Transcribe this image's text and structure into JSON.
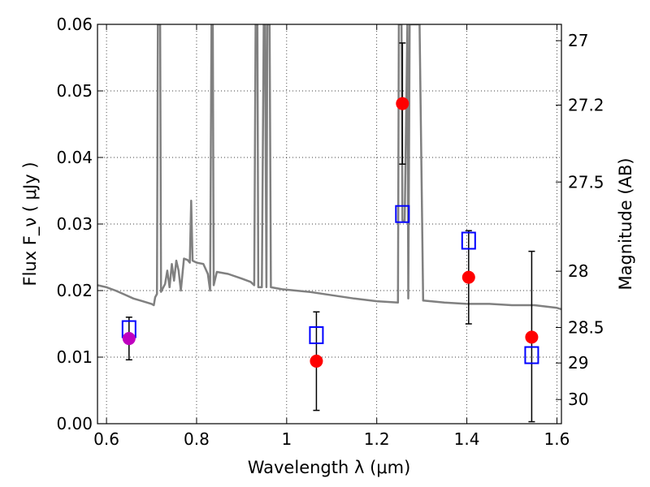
{
  "chart_data": {
    "type": "scatter",
    "xlabel": "Wavelength  λ (μm)",
    "ylabel": "Flux  F_ν  ( μJy )",
    "y2label": "Magnitude (AB)",
    "xlim": [
      0.58,
      1.61
    ],
    "ylim": [
      0.0,
      0.06
    ],
    "grid": true,
    "x_ticks": [
      {
        "value": 0.6,
        "label": "0.6"
      },
      {
        "value": 0.8,
        "label": "0.8"
      },
      {
        "value": 1.0,
        "label": "1"
      },
      {
        "value": 1.2,
        "label": "1.2"
      },
      {
        "value": 1.4,
        "label": "1.4"
      },
      {
        "value": 1.6,
        "label": "1.6"
      }
    ],
    "y_ticks": [
      {
        "value": 0.0,
        "label": "0.00"
      },
      {
        "value": 0.01,
        "label": "0.01"
      },
      {
        "value": 0.02,
        "label": "0.02"
      },
      {
        "value": 0.03,
        "label": "0.03"
      },
      {
        "value": 0.04,
        "label": "0.04"
      },
      {
        "value": 0.05,
        "label": "0.05"
      },
      {
        "value": 0.06,
        "label": "0.06"
      }
    ],
    "mag_ticks": [
      {
        "mag": 27.0,
        "label": "27"
      },
      {
        "mag": 27.2,
        "label": "27.2"
      },
      {
        "mag": 27.5,
        "label": "27.5"
      },
      {
        "mag": 28.0,
        "label": "28"
      },
      {
        "mag": 28.5,
        "label": "28.5"
      },
      {
        "mag": 29.0,
        "label": "29"
      },
      {
        "mag": 30.0,
        "label": "30"
      }
    ],
    "model_color": "#808080",
    "model_sed": [
      [
        0.58,
        0.0208
      ],
      [
        0.6,
        0.0205
      ],
      [
        0.62,
        0.02
      ],
      [
        0.64,
        0.0194
      ],
      [
        0.66,
        0.0188
      ],
      [
        0.68,
        0.0184
      ],
      [
        0.7,
        0.018
      ],
      [
        0.705,
        0.0178
      ],
      [
        0.708,
        0.019
      ],
      [
        0.712,
        0.0195
      ],
      [
        0.714,
        0.06
      ],
      [
        0.719,
        0.06
      ],
      [
        0.721,
        0.0198
      ],
      [
        0.73,
        0.021
      ],
      [
        0.735,
        0.023
      ],
      [
        0.74,
        0.0205
      ],
      [
        0.745,
        0.024
      ],
      [
        0.75,
        0.0215
      ],
      [
        0.755,
        0.0245
      ],
      [
        0.76,
        0.023
      ],
      [
        0.765,
        0.02
      ],
      [
        0.772,
        0.0248
      ],
      [
        0.78,
        0.0246
      ],
      [
        0.785,
        0.0242
      ],
      [
        0.788,
        0.0335
      ],
      [
        0.791,
        0.0245
      ],
      [
        0.8,
        0.0242
      ],
      [
        0.815,
        0.024
      ],
      [
        0.825,
        0.0225
      ],
      [
        0.83,
        0.02
      ],
      [
        0.833,
        0.06
      ],
      [
        0.836,
        0.06
      ],
      [
        0.838,
        0.0208
      ],
      [
        0.845,
        0.0228
      ],
      [
        0.87,
        0.0225
      ],
      [
        0.9,
        0.0218
      ],
      [
        0.92,
        0.0213
      ],
      [
        0.928,
        0.0208
      ],
      [
        0.931,
        0.06
      ],
      [
        0.935,
        0.06
      ],
      [
        0.937,
        0.0205
      ],
      [
        0.945,
        0.0205
      ],
      [
        0.949,
        0.06
      ],
      [
        0.952,
        0.06
      ],
      [
        0.955,
        0.0205
      ],
      [
        0.957,
        0.06
      ],
      [
        0.962,
        0.06
      ],
      [
        0.965,
        0.0205
      ],
      [
        0.99,
        0.0202
      ],
      [
        1.05,
        0.0198
      ],
      [
        1.1,
        0.0193
      ],
      [
        1.15,
        0.0188
      ],
      [
        1.2,
        0.0184
      ],
      [
        1.247,
        0.0182
      ],
      [
        1.249,
        0.06
      ],
      [
        1.255,
        0.06
      ],
      [
        1.257,
        0.0305
      ],
      [
        1.262,
        0.0305
      ],
      [
        1.268,
        0.06
      ],
      [
        1.27,
        0.0188
      ],
      [
        1.273,
        0.06
      ],
      [
        1.295,
        0.06
      ],
      [
        1.303,
        0.0185
      ],
      [
        1.35,
        0.0182
      ],
      [
        1.4,
        0.018
      ],
      [
        1.45,
        0.018
      ],
      [
        1.5,
        0.0178
      ],
      [
        1.55,
        0.0178
      ],
      [
        1.6,
        0.0174
      ],
      [
        1.61,
        0.0172
      ]
    ],
    "observed_color": "#ff0000",
    "observed_points": [
      {
        "x": 1.066,
        "y": 0.0094,
        "yerr_low": 0.0074,
        "yerr_high": 0.0074
      },
      {
        "x": 1.257,
        "y": 0.0481,
        "yerr_low": 0.0091,
        "yerr_high": 0.0091
      },
      {
        "x": 1.404,
        "y": 0.022,
        "yerr_low": 0.007,
        "yerr_high": 0.007
      },
      {
        "x": 1.544,
        "y": 0.013,
        "yerr_low": 0.0127,
        "yerr_high": 0.0129
      }
    ],
    "special_point_color": "#bf00bf",
    "special_points": [
      {
        "x": 0.65,
        "y": 0.0128,
        "yerr_low": 0.0032,
        "yerr_high": 0.0032
      }
    ],
    "model_box_color": "#0000ff",
    "model_photometry": [
      {
        "x": 0.65,
        "y": 0.0142
      },
      {
        "x": 1.066,
        "y": 0.0133
      },
      {
        "x": 1.257,
        "y": 0.0315
      },
      {
        "x": 1.404,
        "y": 0.0275
      },
      {
        "x": 1.544,
        "y": 0.0103
      }
    ]
  }
}
